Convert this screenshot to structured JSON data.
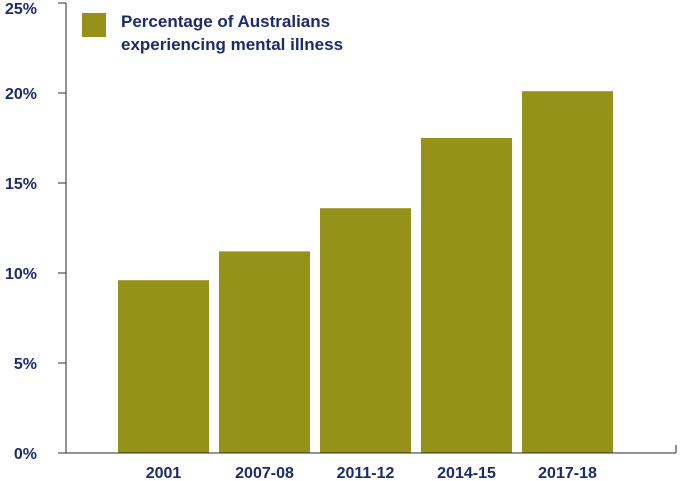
{
  "colors": {
    "bar": "#969219",
    "text": "#1d2a6b",
    "axis": "#2b2b2b"
  },
  "legend": {
    "label_line1": "Percentage of Australians",
    "label_line2": "experiencing mental illness"
  },
  "chart_data": {
    "type": "bar",
    "categories": [
      "2001",
      "2007-08",
      "2011-12",
      "2014-15",
      "2017-18"
    ],
    "series": [
      {
        "name": "Percentage of Australians experiencing mental illness",
        "values": [
          9.6,
          11.2,
          13.6,
          17.5,
          20.1
        ]
      }
    ],
    "ylim": [
      0,
      25
    ],
    "yticks": [
      0,
      5,
      10,
      15,
      20,
      25
    ],
    "ytick_labels": [
      "0%",
      "5%",
      "10%",
      "15%",
      "20%",
      "25%"
    ],
    "title": "",
    "xlabel": "",
    "ylabel": "",
    "grid": false,
    "legend_position": "top-left"
  }
}
